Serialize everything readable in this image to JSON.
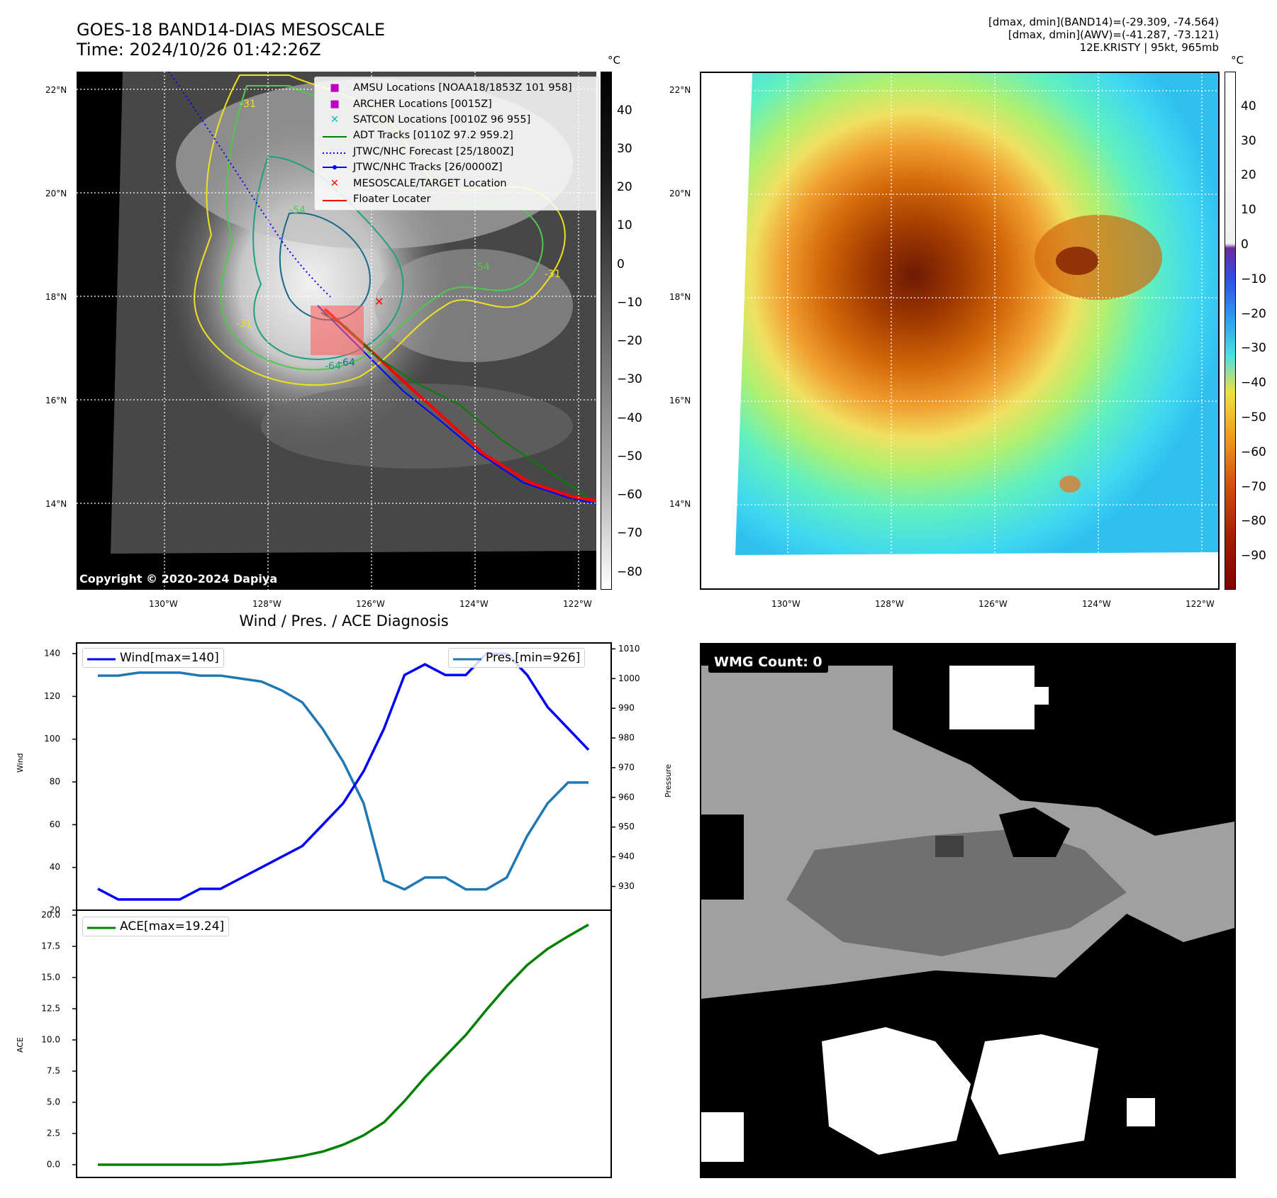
{
  "header": {
    "title_line1": "GOES-18 BAND14-DIAS MESOSCALE",
    "title_line2": "Time: 2024/10/26 01:42:26Z",
    "info_line1": "[dmax, dmin](BAND14)=(-29.309, -74.564)",
    "info_line2": "[dmax, dmin](AWV)=(-41.287, -73.121)",
    "info_line3": "12E.KRISTY | 95kt, 965mb"
  },
  "map_left": {
    "lat_labels": [
      "22°N",
      "20°N",
      "18°N",
      "16°N",
      "14°N"
    ],
    "lon_labels": [
      "130°W",
      "128°W",
      "126°W",
      "124°W",
      "122°W"
    ],
    "contour_labels": [
      "-31",
      "-54",
      "-64",
      "-31",
      "-54",
      "-31",
      "-64"
    ],
    "copyright": "Copyright © 2020-2024 Dapiya",
    "legend": [
      {
        "label": "AMSU Locations [NOAA18/1853Z 101 958]",
        "symbol": "square",
        "color": "#c000c0"
      },
      {
        "label": "ARCHER Locations [0015Z]",
        "symbol": "square",
        "color": "#c000c0"
      },
      {
        "label": "SATCON Locations [0010Z 96 955]",
        "symbol": "x",
        "color": "#00c0c0"
      },
      {
        "label": "ADT Tracks [0110Z 97.2 959.2]",
        "symbol": "line",
        "color": "#008000"
      },
      {
        "label": "JTWC/NHC Forecast [25/1800Z]",
        "symbol": "dotted",
        "color": "#0000ff"
      },
      {
        "label": "JTWC/NHC Tracks [26/0000Z]",
        "symbol": "line-dot",
        "color": "#0000ff"
      },
      {
        "label": "MESOSCALE/TARGET Location",
        "symbol": "x",
        "color": "#ff0000"
      },
      {
        "label": "Floater Locater",
        "symbol": "line",
        "color": "#ff0000"
      }
    ],
    "colorbar_unit": "°C",
    "colorbar_ticks": [
      "40",
      "30",
      "20",
      "10",
      "0",
      "−10",
      "−20",
      "−30",
      "−40",
      "−50",
      "−60",
      "−70",
      "−80"
    ]
  },
  "map_right": {
    "lat_labels": [
      "22°N",
      "20°N",
      "18°N",
      "16°N",
      "14°N"
    ],
    "lon_labels": [
      "130°W",
      "128°W",
      "126°W",
      "124°W",
      "122°W"
    ],
    "colorbar_unit": "°C",
    "colorbar_ticks": [
      "40",
      "30",
      "20",
      "10",
      "0",
      "−10",
      "−20",
      "−30",
      "−40",
      "−50",
      "−60",
      "−70",
      "−80",
      "−90"
    ]
  },
  "diagnosis": {
    "title": "Wind / Pres. / ACE Diagnosis",
    "wind_ylabel": "Wind",
    "pres_ylabel": "Pressure",
    "ace_ylabel": "ACE",
    "wind_ticks": [
      "140",
      "120",
      "100",
      "80",
      "60",
      "40",
      "20"
    ],
    "pres_ticks": [
      "1010",
      "1000",
      "990",
      "980",
      "970",
      "960",
      "950",
      "940",
      "930"
    ],
    "ace_ticks": [
      "20.0",
      "17.5",
      "15.0",
      "12.5",
      "10.0",
      "7.5",
      "5.0",
      "2.5",
      "0.0"
    ]
  },
  "wmg": {
    "label": "WMG Count: 0"
  },
  "chart_data": [
    {
      "type": "line",
      "title": "Wind / Pres. / ACE Diagnosis",
      "ylabel": "Wind",
      "ylim": [
        20,
        145
      ],
      "ylabel_right": "Pressure",
      "ylim_right": [
        926,
        1010
      ],
      "x": [
        0,
        1,
        2,
        3,
        4,
        5,
        6,
        7,
        8,
        9,
        10,
        11,
        12,
        13,
        14,
        15,
        16,
        17,
        18,
        19,
        20,
        21,
        22,
        23,
        24
      ],
      "series": [
        {
          "name": "Wind[max=140]",
          "axis": "left",
          "color": "#0000ff",
          "values": [
            30,
            25,
            25,
            25,
            25,
            30,
            30,
            35,
            40,
            45,
            50,
            60,
            70,
            85,
            105,
            130,
            135,
            130,
            130,
            140,
            140,
            130,
            115,
            105,
            95
          ]
        },
        {
          "name": "Pres.[min=926]",
          "axis": "right",
          "color": "#1f77b4",
          "values": [
            1001,
            1001,
            1002,
            1002,
            1002,
            1001,
            1001,
            1000,
            999,
            996,
            992,
            983,
            972,
            958,
            932,
            929,
            933,
            933,
            929,
            929,
            933,
            947,
            958,
            965,
            965
          ]
        }
      ]
    },
    {
      "type": "line",
      "ylabel": "ACE",
      "ylim": [
        0,
        20
      ],
      "x": [
        0,
        1,
        2,
        3,
        4,
        5,
        6,
        7,
        8,
        9,
        10,
        11,
        12,
        13,
        14,
        15,
        16,
        17,
        18,
        19,
        20,
        21,
        22,
        23,
        24
      ],
      "series": [
        {
          "name": "ACE[max=19.24]",
          "color": "#008000",
          "values": [
            0,
            0,
            0,
            0,
            0,
            0,
            0,
            0.1,
            0.25,
            0.45,
            0.7,
            1.05,
            1.6,
            2.35,
            3.4,
            5.1,
            7.0,
            8.7,
            10.4,
            12.4,
            14.3,
            16.0,
            17.3,
            18.3,
            19.24
          ]
        }
      ]
    }
  ]
}
